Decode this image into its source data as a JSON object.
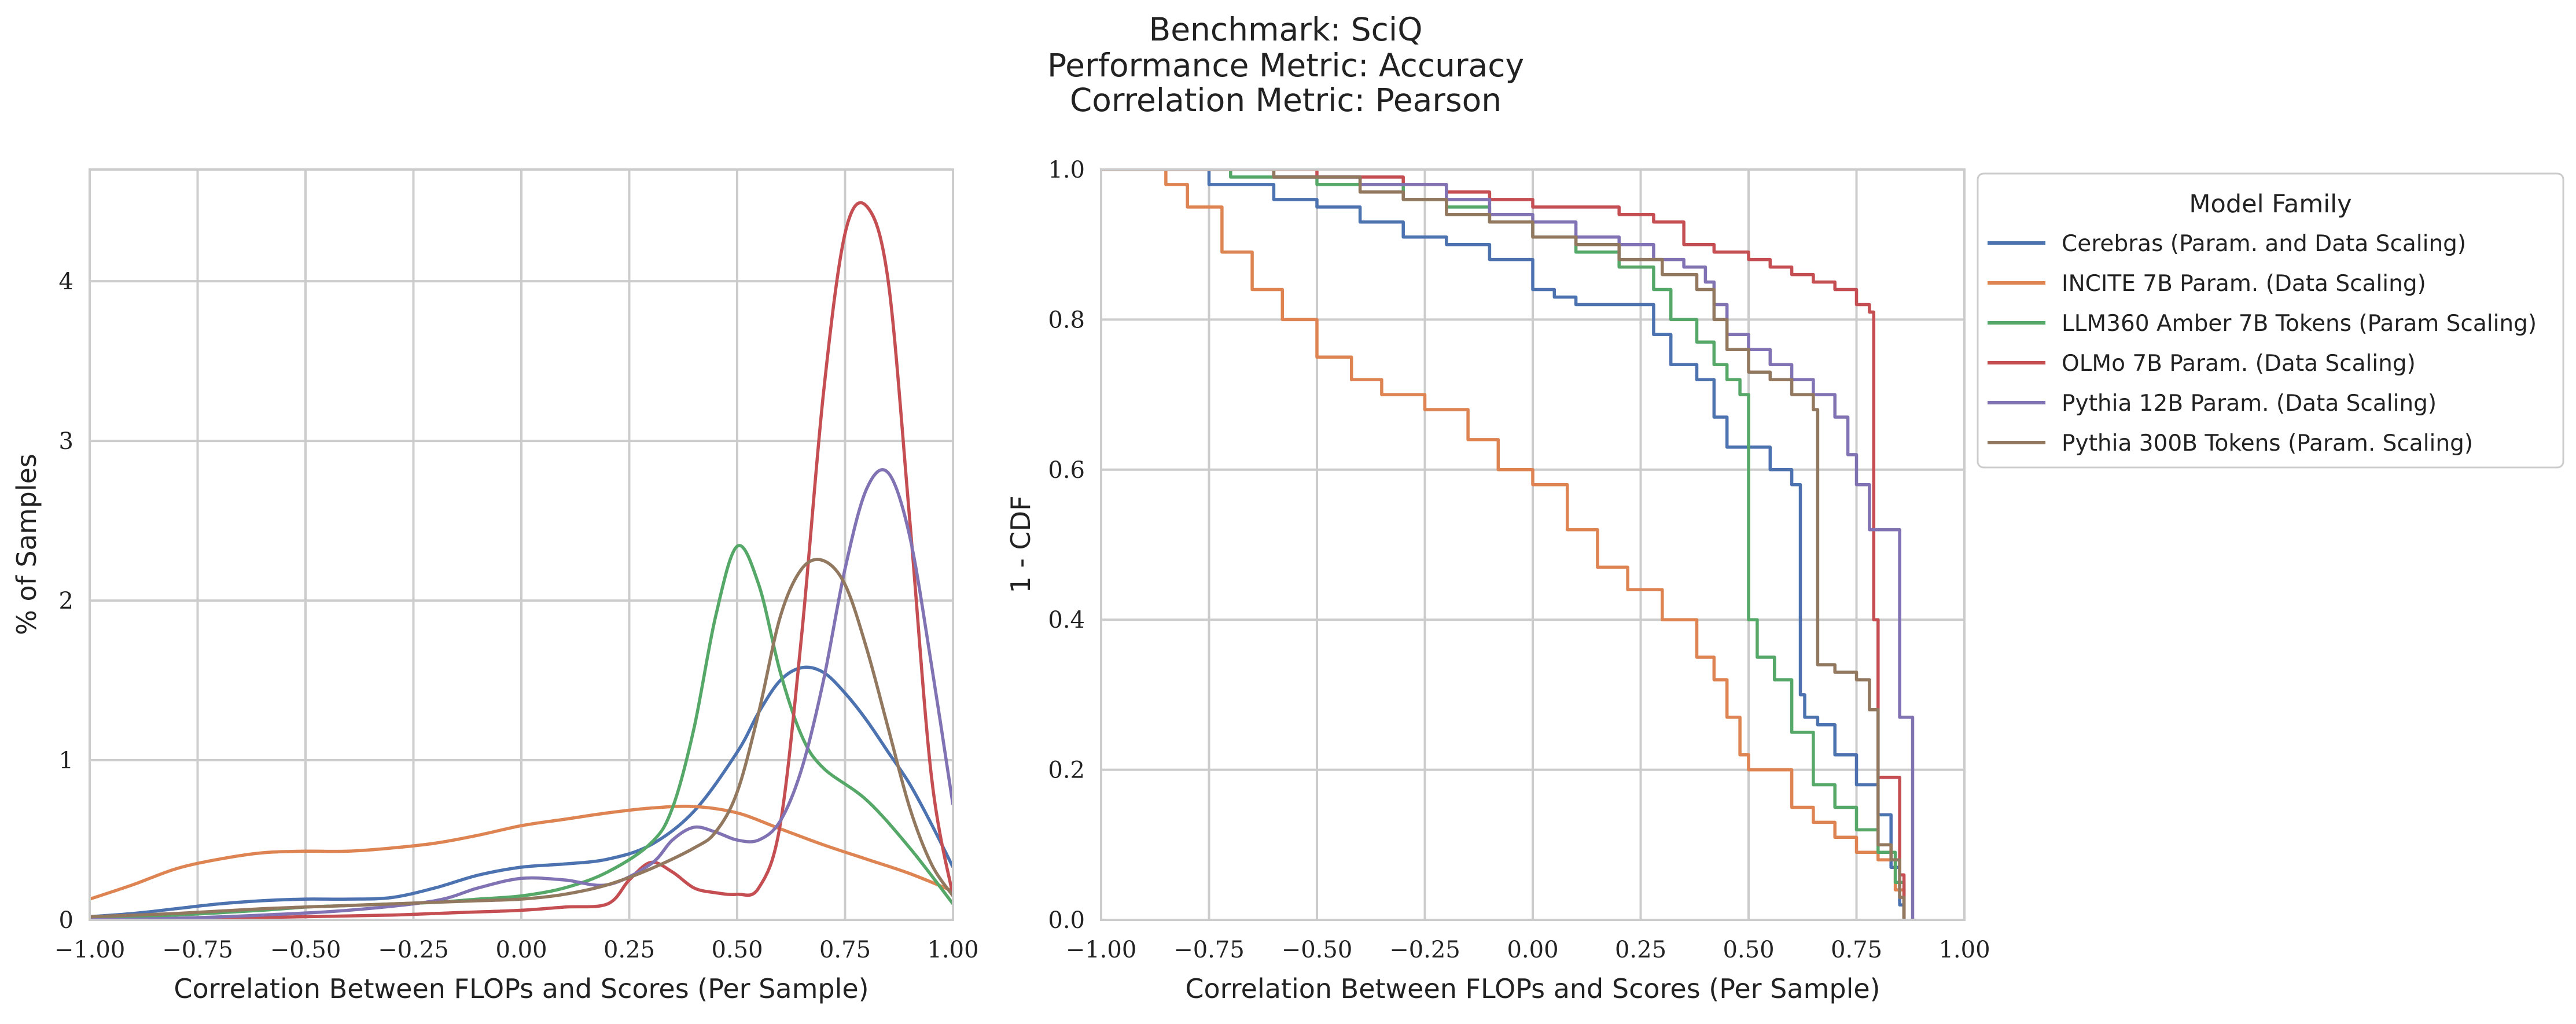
{
  "figure": {
    "title_lines": [
      "Benchmark: SciQ",
      "Performance Metric: Accuracy",
      "Correlation Metric: Pearson"
    ]
  },
  "legend": {
    "title": "Model Family",
    "entries": [
      {
        "label": "Cerebras (Param. and Data Scaling)",
        "color": "#4c72b0"
      },
      {
        "label": "INCITE 7B Param. (Data Scaling)",
        "color": "#dd8452"
      },
      {
        "label": "LLM360 Amber 7B Tokens (Param Scaling)",
        "color": "#55a868"
      },
      {
        "label": "OLMo 7B Param. (Data Scaling)",
        "color": "#c44e52"
      },
      {
        "label": "Pythia 12B Param. (Data Scaling)",
        "color": "#8172b3"
      },
      {
        "label": "Pythia 300B Tokens (Param. Scaling)",
        "color": "#937860"
      }
    ]
  },
  "chart_data": [
    {
      "type": "line",
      "title": "",
      "xlabel": "Correlation Between FLOPs and Scores (Per Sample)",
      "ylabel": "% of Samples",
      "xlim": [
        -1.0,
        1.0
      ],
      "ylim": [
        0,
        4.7
      ],
      "xticks": [
        "−1.00",
        "−0.75",
        "−0.50",
        "−0.25",
        "0.00",
        "0.25",
        "0.50",
        "0.75",
        "1.00"
      ],
      "xtick_values": [
        -1.0,
        -0.75,
        -0.5,
        -0.25,
        0.0,
        0.25,
        0.5,
        0.75,
        1.0
      ],
      "yticks": [
        "0",
        "1",
        "2",
        "3",
        "4"
      ],
      "ytick_values": [
        0,
        1,
        2,
        3,
        4
      ],
      "grid": true,
      "series": [
        {
          "name": "Cerebras (Param. and Data Scaling)",
          "color": "#4c72b0",
          "x": [
            -1.0,
            -0.9,
            -0.8,
            -0.7,
            -0.6,
            -0.5,
            -0.4,
            -0.3,
            -0.2,
            -0.1,
            0.0,
            0.1,
            0.2,
            0.3,
            0.4,
            0.5,
            0.55,
            0.6,
            0.65,
            0.7,
            0.75,
            0.8,
            0.85,
            0.9,
            0.95,
            1.0
          ],
          "y": [
            0.02,
            0.04,
            0.07,
            0.1,
            0.12,
            0.13,
            0.13,
            0.14,
            0.2,
            0.28,
            0.33,
            0.35,
            0.38,
            0.47,
            0.68,
            1.05,
            1.3,
            1.5,
            1.58,
            1.55,
            1.42,
            1.25,
            1.05,
            0.85,
            0.6,
            0.33
          ]
        },
        {
          "name": "INCITE 7B Param. (Data Scaling)",
          "color": "#dd8452",
          "x": [
            -1.0,
            -0.9,
            -0.8,
            -0.7,
            -0.6,
            -0.5,
            -0.4,
            -0.3,
            -0.2,
            -0.1,
            0.0,
            0.1,
            0.2,
            0.3,
            0.4,
            0.5,
            0.6,
            0.7,
            0.8,
            0.9,
            1.0
          ],
          "y": [
            0.13,
            0.22,
            0.32,
            0.38,
            0.42,
            0.43,
            0.43,
            0.45,
            0.48,
            0.53,
            0.59,
            0.63,
            0.67,
            0.7,
            0.71,
            0.67,
            0.57,
            0.47,
            0.38,
            0.29,
            0.18
          ]
        },
        {
          "name": "LLM360 Amber 7B Tokens (Param Scaling)",
          "color": "#55a868",
          "x": [
            -1.0,
            -0.8,
            -0.6,
            -0.5,
            -0.4,
            -0.3,
            -0.2,
            -0.1,
            0.0,
            0.1,
            0.2,
            0.3,
            0.35,
            0.4,
            0.45,
            0.5,
            0.55,
            0.6,
            0.65,
            0.7,
            0.8,
            0.9,
            1.0
          ],
          "y": [
            0.01,
            0.03,
            0.06,
            0.08,
            0.09,
            0.1,
            0.11,
            0.13,
            0.15,
            0.2,
            0.3,
            0.48,
            0.7,
            1.2,
            1.9,
            2.34,
            2.1,
            1.55,
            1.15,
            0.95,
            0.75,
            0.45,
            0.1
          ]
        },
        {
          "name": "OLMo 7B Param. (Data Scaling)",
          "color": "#c44e52",
          "x": [
            -1.0,
            -0.7,
            -0.5,
            -0.3,
            -0.2,
            -0.1,
            0.0,
            0.1,
            0.2,
            0.25,
            0.3,
            0.35,
            0.4,
            0.45,
            0.5,
            0.55,
            0.6,
            0.65,
            0.7,
            0.75,
            0.8,
            0.85,
            0.9,
            0.95,
            1.0
          ],
          "y": [
            0.0,
            0.01,
            0.02,
            0.03,
            0.04,
            0.05,
            0.06,
            0.08,
            0.1,
            0.25,
            0.36,
            0.3,
            0.2,
            0.17,
            0.16,
            0.2,
            0.6,
            1.8,
            3.3,
            4.3,
            4.47,
            4.0,
            2.5,
            0.9,
            0.15
          ]
        },
        {
          "name": "Pythia 12B Param. (Data Scaling)",
          "color": "#8172b3",
          "x": [
            -1.0,
            -0.8,
            -0.6,
            -0.4,
            -0.2,
            -0.1,
            0.0,
            0.1,
            0.2,
            0.3,
            0.35,
            0.4,
            0.45,
            0.5,
            0.55,
            0.6,
            0.65,
            0.7,
            0.75,
            0.8,
            0.85,
            0.9,
            0.95,
            1.0
          ],
          "y": [
            0.0,
            0.01,
            0.03,
            0.06,
            0.12,
            0.2,
            0.26,
            0.25,
            0.22,
            0.35,
            0.5,
            0.58,
            0.55,
            0.5,
            0.5,
            0.62,
            0.95,
            1.5,
            2.2,
            2.7,
            2.8,
            2.4,
            1.6,
            0.72
          ]
        },
        {
          "name": "Pythia 300B Tokens (Param. Scaling)",
          "color": "#937860",
          "x": [
            -1.0,
            -0.8,
            -0.6,
            -0.4,
            -0.2,
            -0.1,
            0.0,
            0.1,
            0.2,
            0.3,
            0.4,
            0.45,
            0.5,
            0.55,
            0.6,
            0.65,
            0.7,
            0.75,
            0.8,
            0.85,
            0.9,
            0.95,
            1.0
          ],
          "y": [
            0.02,
            0.04,
            0.07,
            0.09,
            0.11,
            0.12,
            0.13,
            0.16,
            0.22,
            0.32,
            0.45,
            0.55,
            0.8,
            1.3,
            1.9,
            2.2,
            2.25,
            2.1,
            1.7,
            1.2,
            0.7,
            0.35,
            0.15
          ]
        }
      ]
    },
    {
      "type": "line",
      "title": "",
      "xlabel": "Correlation Between FLOPs and Scores (Per Sample)",
      "ylabel": "1 - CDF",
      "xlim": [
        -1.0,
        1.0
      ],
      "ylim": [
        0.0,
        1.0
      ],
      "step": true,
      "xticks": [
        "−1.00",
        "−0.75",
        "−0.50",
        "−0.25",
        "0.00",
        "0.25",
        "0.50",
        "0.75",
        "1.00"
      ],
      "xtick_values": [
        -1.0,
        -0.75,
        -0.5,
        -0.25,
        0.0,
        0.25,
        0.5,
        0.75,
        1.0
      ],
      "yticks": [
        "0.0",
        "0.2",
        "0.4",
        "0.6",
        "0.8",
        "1.0"
      ],
      "ytick_values": [
        0.0,
        0.2,
        0.4,
        0.6,
        0.8,
        1.0
      ],
      "grid": true,
      "legend_position": "outside-right",
      "series": [
        {
          "name": "Cerebras (Param. and Data Scaling)",
          "color": "#4c72b0",
          "x": [
            -0.9,
            -0.75,
            -0.6,
            -0.5,
            -0.4,
            -0.3,
            -0.2,
            -0.1,
            0.0,
            0.05,
            0.1,
            0.2,
            0.28,
            0.32,
            0.38,
            0.42,
            0.45,
            0.5,
            0.55,
            0.6,
            0.62,
            0.63,
            0.66,
            0.7,
            0.75,
            0.8,
            0.83,
            0.85,
            0.86
          ],
          "y": [
            1.0,
            0.98,
            0.96,
            0.95,
            0.93,
            0.91,
            0.9,
            0.88,
            0.84,
            0.83,
            0.82,
            0.82,
            0.78,
            0.74,
            0.72,
            0.67,
            0.63,
            0.63,
            0.6,
            0.58,
            0.3,
            0.27,
            0.26,
            0.22,
            0.18,
            0.14,
            0.07,
            0.02,
            0.0
          ]
        },
        {
          "name": "INCITE 7B Param. (Data Scaling)",
          "color": "#dd8452",
          "x": [
            -0.9,
            -0.85,
            -0.8,
            -0.72,
            -0.65,
            -0.58,
            -0.5,
            -0.42,
            -0.35,
            -0.25,
            -0.15,
            -0.08,
            0.0,
            0.08,
            0.15,
            0.22,
            0.3,
            0.38,
            0.42,
            0.45,
            0.48,
            0.5,
            0.55,
            0.6,
            0.65,
            0.7,
            0.75,
            0.8,
            0.84,
            0.86
          ],
          "y": [
            1.0,
            0.98,
            0.95,
            0.89,
            0.84,
            0.8,
            0.75,
            0.72,
            0.7,
            0.68,
            0.64,
            0.6,
            0.58,
            0.52,
            0.47,
            0.44,
            0.4,
            0.35,
            0.32,
            0.27,
            0.22,
            0.2,
            0.2,
            0.15,
            0.13,
            0.11,
            0.09,
            0.08,
            0.04,
            0.0
          ]
        },
        {
          "name": "LLM360 Amber 7B Tokens (Param Scaling)",
          "color": "#55a868",
          "x": [
            -0.9,
            -0.7,
            -0.5,
            -0.3,
            -0.2,
            -0.1,
            0.0,
            0.1,
            0.2,
            0.28,
            0.32,
            0.38,
            0.42,
            0.45,
            0.48,
            0.5,
            0.52,
            0.56,
            0.6,
            0.65,
            0.7,
            0.75,
            0.8,
            0.84,
            0.86
          ],
          "y": [
            1.0,
            0.99,
            0.98,
            0.96,
            0.95,
            0.93,
            0.91,
            0.89,
            0.87,
            0.84,
            0.8,
            0.77,
            0.74,
            0.72,
            0.7,
            0.4,
            0.35,
            0.32,
            0.25,
            0.18,
            0.15,
            0.12,
            0.09,
            0.05,
            0.0
          ]
        },
        {
          "name": "OLMo 7B Param. (Data Scaling)",
          "color": "#c44e52",
          "x": [
            -0.9,
            -0.5,
            -0.3,
            -0.2,
            -0.1,
            0.0,
            0.1,
            0.2,
            0.28,
            0.35,
            0.42,
            0.5,
            0.55,
            0.6,
            0.65,
            0.7,
            0.75,
            0.78,
            0.79,
            0.8,
            0.83,
            0.85,
            0.86
          ],
          "y": [
            1.0,
            0.99,
            0.98,
            0.97,
            0.96,
            0.95,
            0.95,
            0.94,
            0.93,
            0.9,
            0.89,
            0.88,
            0.87,
            0.86,
            0.85,
            0.84,
            0.82,
            0.81,
            0.4,
            0.19,
            0.19,
            0.06,
            0.0
          ]
        },
        {
          "name": "Pythia 12B Param. (Data Scaling)",
          "color": "#8172b3",
          "x": [
            -0.9,
            -0.6,
            -0.4,
            -0.2,
            -0.1,
            0.0,
            0.1,
            0.2,
            0.28,
            0.35,
            0.4,
            0.42,
            0.45,
            0.5,
            0.55,
            0.6,
            0.65,
            0.7,
            0.73,
            0.75,
            0.78,
            0.8,
            0.85,
            0.87,
            0.88
          ],
          "y": [
            1.0,
            0.99,
            0.98,
            0.96,
            0.94,
            0.93,
            0.91,
            0.9,
            0.88,
            0.87,
            0.85,
            0.82,
            0.78,
            0.76,
            0.74,
            0.72,
            0.7,
            0.67,
            0.62,
            0.58,
            0.52,
            0.52,
            0.27,
            0.27,
            0.0
          ]
        },
        {
          "name": "Pythia 300B Tokens (Param. Scaling)",
          "color": "#937860",
          "x": [
            -0.9,
            -0.6,
            -0.4,
            -0.3,
            -0.2,
            -0.1,
            0.0,
            0.1,
            0.2,
            0.3,
            0.38,
            0.42,
            0.45,
            0.5,
            0.55,
            0.6,
            0.65,
            0.66,
            0.7,
            0.75,
            0.78,
            0.8,
            0.83,
            0.85,
            0.86
          ],
          "y": [
            1.0,
            0.99,
            0.97,
            0.96,
            0.94,
            0.93,
            0.91,
            0.9,
            0.88,
            0.86,
            0.84,
            0.8,
            0.76,
            0.73,
            0.72,
            0.7,
            0.68,
            0.34,
            0.33,
            0.32,
            0.28,
            0.1,
            0.08,
            0.03,
            0.0
          ]
        }
      ]
    }
  ]
}
